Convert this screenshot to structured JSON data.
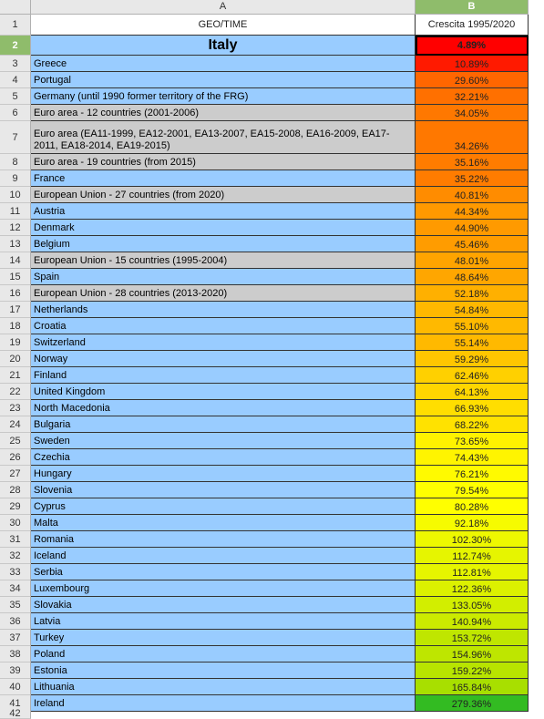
{
  "columns": {
    "a": "A",
    "b": "B"
  },
  "header_row": {
    "number": "1",
    "geo": "GEO/TIME",
    "growth": "Crescita 1995/2020"
  },
  "title_row": {
    "number": "2",
    "country": "Italy",
    "value": "4.89%",
    "color": "#ff0000"
  },
  "blank_row_number": "42",
  "rows": [
    {
      "n": "3",
      "country": "Greece",
      "value": "10.89%",
      "color": "#ff1a00",
      "bg": "#99ccff"
    },
    {
      "n": "4",
      "country": "Portugal",
      "value": "29.60%",
      "color": "#ff6600",
      "bg": "#99ccff"
    },
    {
      "n": "5",
      "country": "Germany (until 1990 former territory of the FRG)",
      "value": "32.21%",
      "color": "#ff7000",
      "bg": "#99ccff"
    },
    {
      "n": "6",
      "country": "Euro area - 12 countries (2001-2006)",
      "value": "34.05%",
      "color": "#ff7800",
      "bg": "#cccccc"
    },
    {
      "n": "7",
      "country": "Euro area (EA11-1999, EA12-2001, EA13-2007, EA15-2008, EA16-2009, EA17-2011, EA18-2014, EA19-2015)",
      "value": "34.26%",
      "color": "#ff7800",
      "bg": "#cccccc",
      "tall": true
    },
    {
      "n": "8",
      "country": "Euro area - 19 countries  (from 2015)",
      "value": "35.16%",
      "color": "#ff7c00",
      "bg": "#cccccc"
    },
    {
      "n": "9",
      "country": "France",
      "value": "35.22%",
      "color": "#ff7c00",
      "bg": "#99ccff"
    },
    {
      "n": "10",
      "country": "European Union - 27 countries (from 2020)",
      "value": "40.81%",
      "color": "#ff8c00",
      "bg": "#cccccc"
    },
    {
      "n": "11",
      "country": "Austria",
      "value": "44.34%",
      "color": "#ff9900",
      "bg": "#99ccff"
    },
    {
      "n": "12",
      "country": "Denmark",
      "value": "44.90%",
      "color": "#ff9a00",
      "bg": "#99ccff"
    },
    {
      "n": "13",
      "country": "Belgium",
      "value": "45.46%",
      "color": "#ff9c00",
      "bg": "#99ccff"
    },
    {
      "n": "14",
      "country": "European Union - 15 countries (1995-2004)",
      "value": "48.01%",
      "color": "#ffa400",
      "bg": "#cccccc"
    },
    {
      "n": "15",
      "country": "Spain",
      "value": "48.64%",
      "color": "#ffa600",
      "bg": "#99ccff"
    },
    {
      "n": "16",
      "country": "European Union - 28 countries (2013-2020)",
      "value": "52.18%",
      "color": "#ffb000",
      "bg": "#cccccc"
    },
    {
      "n": "17",
      "country": "Netherlands",
      "value": "54.84%",
      "color": "#ffb800",
      "bg": "#99ccff"
    },
    {
      "n": "18",
      "country": "Croatia",
      "value": "55.10%",
      "color": "#ffb900",
      "bg": "#99ccff"
    },
    {
      "n": "19",
      "country": "Switzerland",
      "value": "55.14%",
      "color": "#ffb900",
      "bg": "#99ccff"
    },
    {
      "n": "20",
      "country": "Norway",
      "value": "59.29%",
      "color": "#ffc600",
      "bg": "#99ccff"
    },
    {
      "n": "21",
      "country": "Finland",
      "value": "62.46%",
      "color": "#ffd000",
      "bg": "#99ccff"
    },
    {
      "n": "22",
      "country": "United Kingdom",
      "value": "64.13%",
      "color": "#ffd600",
      "bg": "#99ccff"
    },
    {
      "n": "23",
      "country": "North Macedonia",
      "value": "66.93%",
      "color": "#ffde00",
      "bg": "#99ccff"
    },
    {
      "n": "24",
      "country": "Bulgaria",
      "value": "68.22%",
      "color": "#ffe200",
      "bg": "#99ccff"
    },
    {
      "n": "25",
      "country": "Sweden",
      "value": "73.65%",
      "color": "#fff200",
      "bg": "#99ccff"
    },
    {
      "n": "26",
      "country": "Czechia",
      "value": "74.43%",
      "color": "#fff400",
      "bg": "#99ccff"
    },
    {
      "n": "27",
      "country": "Hungary",
      "value": "76.21%",
      "color": "#fffa00",
      "bg": "#99ccff"
    },
    {
      "n": "28",
      "country": "Slovenia",
      "value": "79.54%",
      "color": "#ffff00",
      "bg": "#99ccff"
    },
    {
      "n": "29",
      "country": "Cyprus",
      "value": "80.28%",
      "color": "#ffff00",
      "bg": "#99ccff"
    },
    {
      "n": "30",
      "country": "Malta",
      "value": "92.18%",
      "color": "#f6fb00",
      "bg": "#99ccff"
    },
    {
      "n": "31",
      "country": "Romania",
      "value": "102.30%",
      "color": "#eef800",
      "bg": "#99ccff"
    },
    {
      "n": "32",
      "country": "Iceland",
      "value": "112.74%",
      "color": "#e6f500",
      "bg": "#99ccff"
    },
    {
      "n": "33",
      "country": "Serbia",
      "value": "112.81%",
      "color": "#e6f500",
      "bg": "#99ccff"
    },
    {
      "n": "34",
      "country": "Luxembourg",
      "value": "122.36%",
      "color": "#dcf100",
      "bg": "#99ccff"
    },
    {
      "n": "35",
      "country": "Slovakia",
      "value": "133.05%",
      "color": "#d2ee00",
      "bg": "#99ccff"
    },
    {
      "n": "36",
      "country": "Latvia",
      "value": "140.94%",
      "color": "#cbeb00",
      "bg": "#99ccff"
    },
    {
      "n": "37",
      "country": "Turkey",
      "value": "153.72%",
      "color": "#bfe600",
      "bg": "#99ccff"
    },
    {
      "n": "38",
      "country": "Poland",
      "value": "154.96%",
      "color": "#bee600",
      "bg": "#99ccff"
    },
    {
      "n": "39",
      "country": "Estonia",
      "value": "159.22%",
      "color": "#b8e400",
      "bg": "#99ccff"
    },
    {
      "n": "40",
      "country": "Lithuania",
      "value": "165.84%",
      "color": "#a8df00",
      "bg": "#99ccff"
    },
    {
      "n": "41",
      "country": "Ireland",
      "value": "279.36%",
      "color": "#33bb22",
      "bg": "#99ccff"
    }
  ]
}
